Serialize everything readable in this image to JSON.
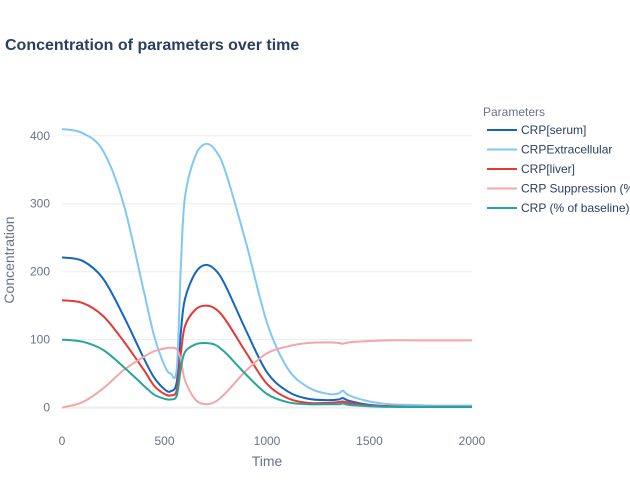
{
  "chart_data": {
    "type": "line",
    "title": "Concentration of parameters over time",
    "xlabel": "Time",
    "ylabel": "Concentration",
    "xlim": [
      0,
      2000
    ],
    "ylim": [
      -30,
      460
    ],
    "x_ticks": [
      0,
      500,
      1000,
      1500,
      2000
    ],
    "y_ticks": [
      0,
      100,
      200,
      300,
      400
    ],
    "grid": true,
    "legend_title": "Parameters",
    "legend_position": "right",
    "x": [
      0,
      100,
      200,
      300,
      400,
      450,
      500,
      530,
      560,
      580,
      600,
      650,
      700,
      750,
      800,
      900,
      1000,
      1100,
      1200,
      1300,
      1350,
      1370,
      1400,
      1500,
      1600,
      1700,
      1800,
      2000
    ],
    "series": [
      {
        "name": "CRP[serum]",
        "color": "#1565c0",
        "values": [
          221,
          216,
          190,
          135,
          72,
          44,
          27,
          24,
          38,
          112,
          160,
          198,
          210,
          202,
          178,
          112,
          52,
          24,
          13,
          11,
          12,
          14,
          10,
          4,
          2,
          1,
          1,
          1
        ]
      },
      {
        "name": "CRPExtracellular",
        "color": "#81c7f5",
        "values": [
          410,
          404,
          378,
          300,
          170,
          105,
          62,
          50,
          58,
          210,
          310,
          370,
          388,
          378,
          345,
          240,
          125,
          58,
          30,
          20,
          21,
          25,
          18,
          9,
          5,
          4,
          3,
          3
        ]
      },
      {
        "name": "CRP[liver]",
        "color": "#e53935",
        "values": [
          158,
          154,
          135,
          98,
          55,
          32,
          20,
          18,
          26,
          80,
          120,
          144,
          150,
          145,
          128,
          80,
          35,
          14,
          7,
          7,
          8,
          9,
          7,
          3,
          2,
          1,
          1,
          1
        ]
      },
      {
        "name": "CRP Suppression (%)",
        "color": "#f4a6a6",
        "values": [
          0,
          8,
          28,
          55,
          75,
          83,
          87,
          88,
          86,
          70,
          40,
          12,
          5,
          9,
          22,
          55,
          80,
          90,
          95,
          96,
          95,
          94,
          96,
          98,
          99,
          99,
          99,
          99
        ]
      },
      {
        "name": "CRP (% of baseline)",
        "color": "#26a69a",
        "values": [
          100,
          97,
          85,
          60,
          32,
          19,
          13,
          12,
          18,
          58,
          82,
          93,
          95,
          92,
          80,
          48,
          20,
          8,
          5,
          5,
          5,
          6,
          4,
          2,
          1,
          1,
          1,
          1
        ]
      }
    ]
  }
}
